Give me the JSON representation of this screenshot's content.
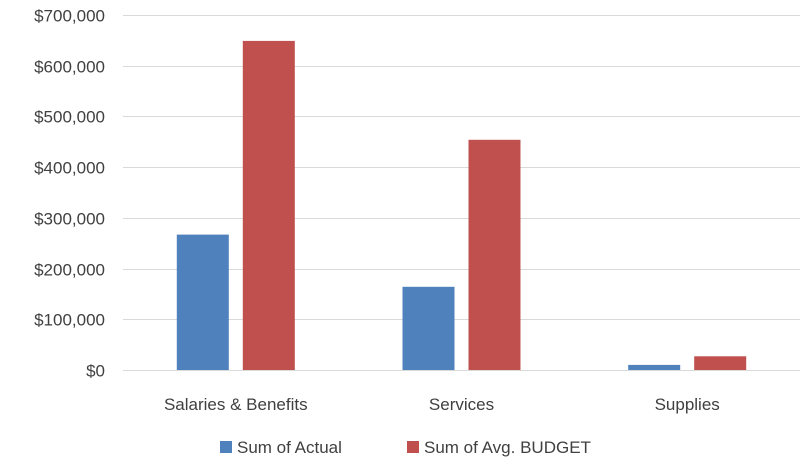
{
  "chart_data": {
    "type": "bar",
    "categories": [
      "Salaries & Benefits",
      "Services",
      "Supplies"
    ],
    "series": [
      {
        "name": "Sum of Actual",
        "color": "#4F81BD",
        "values": [
          267000,
          164000,
          10000
        ]
      },
      {
        "name": "Sum of Avg. BUDGET",
        "color": "#C0504D",
        "values": [
          649000,
          454000,
          27000
        ]
      }
    ],
    "ylim": [
      0,
      700000
    ],
    "yticks": [
      0,
      100000,
      200000,
      300000,
      400000,
      500000,
      600000,
      700000
    ],
    "ytick_labels": [
      "$0",
      "$100,000",
      "$200,000",
      "$300,000",
      "$400,000",
      "$500,000",
      "$600,000",
      "$700,000"
    ],
    "gridlines": true,
    "legend_position": "bottom",
    "title": "",
    "xlabel": "",
    "ylabel": ""
  }
}
